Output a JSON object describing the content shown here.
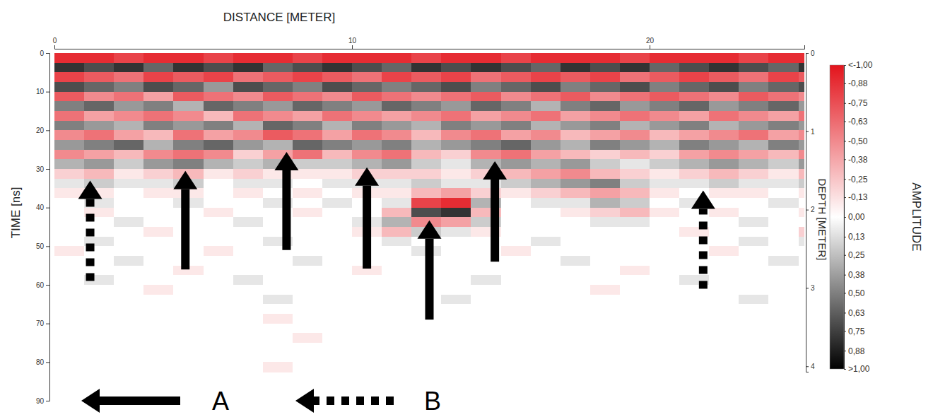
{
  "chart_data": {
    "type": "heatmap",
    "title": "DISTANCE [METER]",
    "x_label": "DISTANCE [METER]",
    "y_label": "TIME [ns]",
    "y2_label": "DEPTH [METER]",
    "xlim": [
      0,
      25.2
    ],
    "xticks": [
      0,
      10,
      20
    ],
    "ylim": [
      0,
      90
    ],
    "yticks": [
      0,
      10,
      20,
      30,
      40,
      50,
      60,
      70,
      80,
      90
    ],
    "y2lim": [
      0,
      4.07
    ],
    "y2ticks": [
      0,
      1,
      2,
      3,
      4
    ],
    "x_bins": [
      0,
      1,
      2,
      3,
      4,
      5,
      6,
      7,
      8,
      9,
      10,
      11,
      12,
      13,
      14,
      15,
      16,
      17,
      18,
      19,
      20,
      21,
      22,
      23,
      24,
      25,
      25.2
    ],
    "t_bins": [
      0,
      2.5,
      5,
      7.5,
      10,
      12.5,
      15,
      17.5,
      20,
      22.5,
      25,
      27.5,
      30,
      32.5,
      35,
      37.5,
      40,
      42.5,
      45,
      47.5,
      50,
      52.5,
      55,
      57.5,
      60,
      62.5,
      65,
      67.5,
      70,
      72.5,
      75,
      77.5,
      80,
      82.5
    ],
    "cells": [
      [
        -0.9,
        -0.9,
        -0.8,
        -0.9,
        -0.9,
        -0.8,
        -0.9,
        -0.9,
        -0.8,
        -0.9,
        -0.9,
        -0.9,
        -0.8,
        -0.9,
        -0.9,
        -0.8,
        -0.9,
        -0.9,
        -0.9,
        -0.8,
        -0.9,
        -0.9,
        -0.9,
        -0.8,
        -0.9,
        -0.9
      ],
      [
        0.8,
        0.7,
        0.8,
        0.6,
        0.8,
        0.7,
        0.8,
        0.6,
        0.7,
        0.8,
        0.7,
        0.6,
        0.8,
        0.7,
        0.8,
        0.7,
        0.6,
        0.8,
        0.7,
        0.8,
        0.6,
        0.7,
        0.8,
        0.7,
        0.6,
        0.8
      ],
      [
        -0.8,
        -0.7,
        -0.6,
        -0.8,
        -0.7,
        -0.8,
        -0.6,
        -0.7,
        -0.8,
        -0.7,
        -0.6,
        -0.8,
        -0.7,
        -0.8,
        -0.6,
        -0.7,
        -0.8,
        -0.7,
        -0.8,
        -0.6,
        -0.7,
        -0.8,
        -0.7,
        -0.6,
        -0.8,
        -0.7
      ],
      [
        0.7,
        0.6,
        0.5,
        0.7,
        0.6,
        0.4,
        0.7,
        0.6,
        0.5,
        0.7,
        0.6,
        0.5,
        0.6,
        0.7,
        0.5,
        0.6,
        0.7,
        0.5,
        0.6,
        0.7,
        0.5,
        0.6,
        0.7,
        0.5,
        0.6,
        0.7
      ],
      [
        -0.7,
        -0.5,
        -0.6,
        -0.4,
        -0.7,
        -0.6,
        -0.5,
        -0.7,
        -0.6,
        -0.5,
        -0.7,
        -0.6,
        -0.5,
        -0.6,
        -0.7,
        -0.5,
        -0.6,
        -0.7,
        -0.5,
        -0.6,
        -0.7,
        -0.6,
        -0.5,
        -0.7,
        -0.6,
        -0.5
      ],
      [
        0.5,
        0.6,
        0.4,
        0.5,
        0.3,
        0.6,
        0.5,
        0.4,
        0.6,
        0.5,
        0.4,
        0.6,
        0.5,
        0.4,
        0.6,
        0.5,
        0.3,
        0.5,
        0.6,
        0.4,
        0.5,
        0.6,
        0.4,
        0.5,
        0.6,
        0.4
      ],
      [
        -0.6,
        -0.4,
        -0.5,
        -0.6,
        -0.5,
        -0.3,
        -0.6,
        -0.5,
        -0.4,
        -0.6,
        -0.5,
        -0.4,
        -0.5,
        -0.6,
        -0.4,
        -0.5,
        -0.6,
        -0.4,
        -0.5,
        -0.6,
        -0.5,
        -0.4,
        -0.6,
        -0.5,
        -0.4,
        -0.6
      ],
      [
        0.5,
        0.4,
        0.3,
        0.5,
        0.4,
        0.5,
        0.3,
        0.6,
        0.5,
        0.3,
        0.5,
        0.4,
        0.3,
        0.5,
        0.4,
        0.5,
        0.3,
        0.4,
        0.5,
        0.3,
        0.4,
        0.5,
        0.3,
        0.4,
        0.5,
        0.4
      ],
      [
        -0.5,
        -0.6,
        -0.4,
        -0.3,
        -0.6,
        -0.4,
        -0.5,
        -0.7,
        -0.6,
        -0.4,
        -0.6,
        -0.5,
        -0.3,
        -0.5,
        -0.6,
        -0.4,
        -0.5,
        -0.3,
        -0.4,
        -0.5,
        -0.3,
        -0.4,
        -0.5,
        -0.6,
        -0.4,
        -0.5
      ],
      [
        0.4,
        0.5,
        0.6,
        0.3,
        0.5,
        0.6,
        0.4,
        0.3,
        0.6,
        0.5,
        0.4,
        0.5,
        0.3,
        0.4,
        0.5,
        0.6,
        0.4,
        0.3,
        0.5,
        0.4,
        0.3,
        0.5,
        0.4,
        0.3,
        0.5,
        0.4
      ],
      [
        -0.5,
        -0.4,
        -0.3,
        -0.5,
        -0.6,
        -0.5,
        -0.2,
        -0.4,
        -0.6,
        -0.3,
        -0.5,
        -0.6,
        -0.3,
        -0.2,
        -0.5,
        -0.6,
        -0.4,
        -0.3,
        -0.2,
        -0.3,
        -0.2,
        -0.4,
        -0.5,
        -0.4,
        -0.3,
        -0.5
      ],
      [
        0.3,
        0.4,
        0.2,
        0.4,
        0.5,
        0.3,
        0.2,
        0.3,
        0.2,
        0.2,
        0.3,
        0.4,
        0.2,
        0.1,
        0.3,
        0.4,
        0.3,
        0.4,
        0.2,
        0.1,
        0.2,
        0.3,
        0.4,
        0.3,
        0.2,
        0.4
      ],
      [
        -0.2,
        -0.3,
        -0.1,
        -0.2,
        -0.3,
        -0.1,
        -0.2,
        -0.1,
        -0.1,
        -0.1,
        -0.2,
        -0.2,
        -0.2,
        -0.1,
        -0.2,
        -0.3,
        -0.4,
        -0.5,
        -0.3,
        -0.2,
        -0.1,
        -0.2,
        -0.3,
        -0.2,
        -0.1,
        -0.3
      ],
      [
        0.1,
        0.2,
        0.1,
        0.1,
        0.2,
        0,
        0.1,
        0.1,
        0,
        0.1,
        0.1,
        0.1,
        0.2,
        0.1,
        0.1,
        0.2,
        0.3,
        0.4,
        0.5,
        0.2,
        0.1,
        0.1,
        0.2,
        0.1,
        0.1,
        0.2
      ],
      [
        -0.1,
        -0.1,
        0,
        -0.1,
        -0.1,
        0,
        -0.1,
        0,
        -0.1,
        0,
        -0.1,
        -0.1,
        -0.3,
        -0.4,
        -0.2,
        -0.1,
        -0.2,
        -0.3,
        -0.4,
        -0.3,
        -0.1,
        0,
        -0.1,
        -0.1,
        0,
        -0.1
      ],
      [
        0,
        0.1,
        0,
        0,
        0.1,
        0,
        0,
        0.1,
        0,
        0.1,
        0,
        0.1,
        -0.8,
        -0.9,
        0.3,
        0,
        0.1,
        0.1,
        0.3,
        0.2,
        0,
        0.1,
        0,
        0,
        0.1,
        0
      ],
      [
        0,
        -0.1,
        0,
        0,
        0,
        -0.1,
        0,
        0,
        -0.1,
        0,
        0,
        -0.3,
        0.7,
        0.8,
        -0.3,
        0,
        0,
        -0.1,
        -0.2,
        -0.3,
        -0.1,
        0,
        -0.1,
        0,
        0,
        -0.1
      ],
      [
        0,
        0,
        0.1,
        0,
        0,
        0,
        0.1,
        0,
        0,
        0,
        0.1,
        0.3,
        -0.5,
        -0.4,
        0.2,
        0,
        0,
        0,
        0.1,
        0.1,
        0,
        0,
        0,
        0.1,
        0,
        0
      ],
      [
        0,
        0,
        0,
        -0.1,
        0,
        0,
        0,
        0,
        0,
        0,
        -0.1,
        -0.3,
        0.2,
        0.1,
        -0.1,
        0,
        0,
        0,
        0,
        0,
        0,
        -0.1,
        0,
        0,
        0,
        -0.2
      ],
      [
        0,
        0.1,
        0,
        0,
        0,
        0,
        0,
        0.1,
        0,
        0,
        0,
        0.1,
        0,
        0,
        0,
        0,
        0.1,
        0,
        0,
        0,
        0,
        0,
        0,
        0.1,
        0,
        0.1
      ],
      [
        -0.1,
        0,
        0,
        0,
        0,
        -0.1,
        0,
        0,
        0,
        0,
        0,
        0,
        0.1,
        0,
        0,
        -0.1,
        0,
        0,
        0,
        0,
        0,
        0,
        -0.1,
        0,
        0,
        0
      ],
      [
        0,
        0,
        0.1,
        0,
        0,
        0,
        0,
        0,
        0.1,
        0,
        0,
        0,
        0,
        0,
        0,
        0,
        0,
        0.1,
        0,
        0,
        0,
        0,
        0,
        0,
        0.1,
        0
      ],
      [
        0,
        0,
        0,
        0,
        -0.1,
        0,
        0,
        0,
        0,
        0,
        -0.1,
        0,
        0,
        0,
        0,
        0,
        0,
        0,
        0,
        -0.1,
        0,
        0,
        0,
        0,
        0,
        0
      ],
      [
        0,
        0.1,
        0,
        0,
        0,
        0,
        0.1,
        0,
        0,
        0,
        0,
        0,
        0,
        0,
        0.1,
        0,
        0,
        0,
        0,
        0,
        0,
        0.1,
        0,
        0,
        0,
        0
      ],
      [
        0,
        0,
        0,
        -0.1,
        0,
        0,
        0,
        0,
        0,
        0,
        0,
        0,
        0,
        0,
        0,
        0,
        0,
        0,
        -0.1,
        0,
        0,
        0,
        0,
        0,
        0,
        0
      ],
      [
        0,
        0,
        0,
        0,
        0,
        0,
        0,
        0.1,
        0,
        0,
        0,
        0,
        0,
        0.1,
        0,
        0,
        0,
        0,
        0,
        0,
        0,
        0,
        0,
        0.1,
        0,
        0
      ],
      [
        0,
        0,
        0,
        0,
        0,
        0,
        0,
        0,
        0,
        0,
        0,
        0,
        0,
        0,
        0,
        0,
        0,
        0,
        0,
        0,
        0,
        0,
        0,
        0,
        0,
        0
      ],
      [
        0,
        0,
        0,
        0,
        0,
        0,
        0,
        -0.1,
        0,
        0,
        0,
        0,
        0,
        0,
        0,
        0,
        0,
        0,
        0,
        0,
        0,
        0,
        0,
        0,
        0,
        0
      ],
      [
        0,
        0,
        0,
        0,
        0,
        0,
        0,
        0,
        0,
        0,
        0,
        0,
        0,
        0,
        0,
        0,
        0,
        0,
        0,
        0,
        0,
        0,
        0,
        0,
        0,
        0
      ],
      [
        0,
        0,
        0,
        0,
        0,
        0,
        0,
        0,
        -0.1,
        0,
        0,
        0,
        0,
        0,
        0,
        0,
        0,
        0,
        0,
        0,
        0,
        0,
        0,
        0,
        0,
        0
      ],
      [
        0,
        0,
        0,
        0,
        0,
        0,
        0,
        0,
        0,
        0,
        0,
        0,
        0,
        0,
        0,
        0,
        0,
        0,
        0,
        0,
        0,
        0,
        0,
        0,
        0,
        0
      ],
      [
        0,
        0,
        0,
        0,
        0,
        0,
        0,
        0,
        0,
        0,
        0,
        0,
        0,
        0,
        0,
        0,
        0,
        0,
        0,
        0,
        0,
        0,
        0,
        0,
        0,
        0
      ],
      [
        0,
        0,
        0,
        0,
        0,
        0,
        0,
        -0.1,
        0,
        0,
        0,
        0,
        0,
        0,
        0,
        0,
        0,
        0,
        0,
        0,
        0,
        0,
        0,
        0,
        0,
        0
      ]
    ],
    "colorbar": {
      "title": "AMPLITUDE",
      "range": [
        -1,
        1
      ],
      "colors": [
        "#e3141c",
        "#ffffff",
        "#000000"
      ],
      "ticks": [
        {
          "value": -1,
          "label": "<-1,00"
        },
        {
          "value": -0.88,
          "label": "-0,88"
        },
        {
          "value": -0.75,
          "label": "-0,75"
        },
        {
          "value": -0.63,
          "label": "-0,63"
        },
        {
          "value": -0.5,
          "label": "-0,50"
        },
        {
          "value": -0.38,
          "label": "-0,38"
        },
        {
          "value": -0.25,
          "label": "-0,25"
        },
        {
          "value": -0.13,
          "label": "-0,13"
        },
        {
          "value": 0,
          "label": "0,00"
        },
        {
          "value": 0.13,
          "label": "0,13"
        },
        {
          "value": 0.25,
          "label": "0,25"
        },
        {
          "value": 0.38,
          "label": "0,38"
        },
        {
          "value": 0.5,
          "label": "0,50"
        },
        {
          "value": 0.63,
          "label": "0,63"
        },
        {
          "value": 0.75,
          "label": "0,75"
        },
        {
          "value": 0.88,
          "label": "0,88"
        },
        {
          "value": 1,
          "label": ">1,00"
        }
      ]
    },
    "annotations": [
      {
        "x": 1.2,
        "y": [
          33,
          59
        ],
        "line_style": "dotted"
      },
      {
        "x": 4.4,
        "y": [
          30.5,
          56
        ],
        "line_style": "solid"
      },
      {
        "x": 7.8,
        "y": [
          25.6,
          51
        ],
        "line_style": "solid"
      },
      {
        "x": 10.5,
        "y": [
          29.6,
          55.8
        ],
        "line_style": "solid"
      },
      {
        "x": 12.6,
        "y": [
          43.3,
          69
        ],
        "line_style": "solid"
      },
      {
        "x": 14.8,
        "y": [
          28,
          54
        ],
        "line_style": "solid"
      },
      {
        "x": 21.8,
        "y": [
          35.6,
          61
        ],
        "line_style": "dotted"
      }
    ],
    "key": [
      {
        "label": "A",
        "line_style": "solid"
      },
      {
        "label": "B",
        "line_style": "dotted"
      }
    ]
  }
}
